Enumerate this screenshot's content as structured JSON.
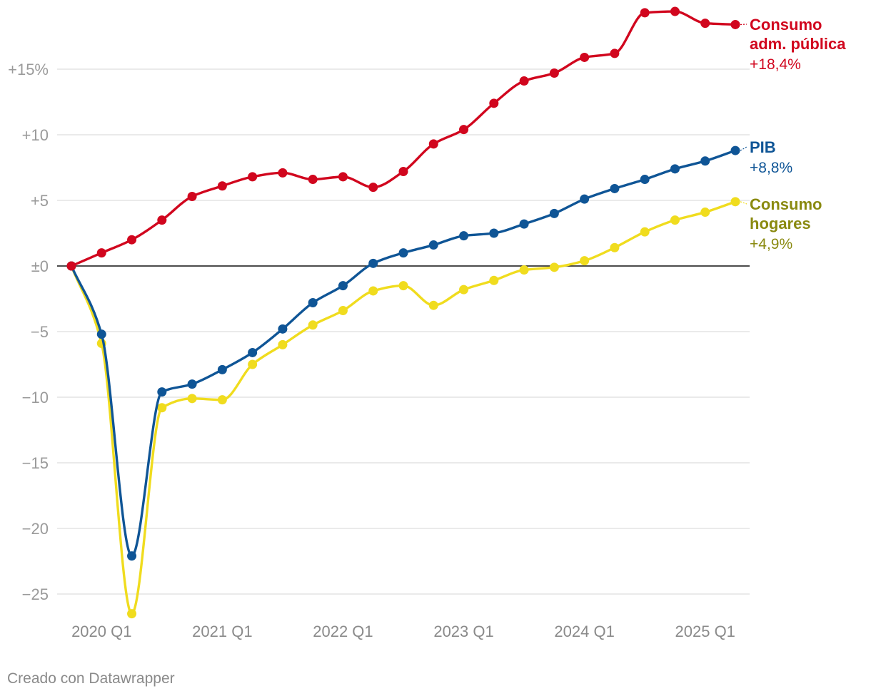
{
  "chart_data": {
    "type": "line",
    "x": [
      "2019 Q4",
      "2020 Q1",
      "2020 Q2",
      "2020 Q3",
      "2020 Q4",
      "2021 Q1",
      "2021 Q2",
      "2021 Q3",
      "2021 Q4",
      "2022 Q1",
      "2022 Q2",
      "2022 Q3",
      "2022 Q4",
      "2023 Q1",
      "2023 Q2",
      "2023 Q3",
      "2023 Q4",
      "2024 Q1",
      "2024 Q2",
      "2024 Q3",
      "2024 Q4",
      "2025 Q1",
      "2025 Q2"
    ],
    "x_tick_labels": [
      "2020 Q1",
      "2021 Q1",
      "2022 Q1",
      "2023 Q1",
      "2024 Q1",
      "2025 Q1"
    ],
    "y_tick_labels": [
      {
        "value": 15,
        "label": "+15%"
      },
      {
        "value": 10,
        "label": "+10"
      },
      {
        "value": 5,
        "label": "+5"
      },
      {
        "value": 0,
        "label": "±0"
      },
      {
        "value": -5,
        "label": "−5"
      },
      {
        "value": -10,
        "label": "−10"
      },
      {
        "value": -15,
        "label": "−15"
      },
      {
        "value": -20,
        "label": "−20"
      },
      {
        "value": -25,
        "label": "−25"
      }
    ],
    "ylim": [
      -27,
      19
    ],
    "grid": true,
    "title": "",
    "xlabel": "",
    "ylabel": "",
    "series": [
      {
        "name": "Consumo hogares",
        "label_lines": [
          "Consumo",
          "hogares"
        ],
        "end_label": "+4,9%",
        "color": "#f0dc1e",
        "label_color": "#8a8a10",
        "values": [
          0,
          -5.9,
          -26.5,
          -10.8,
          -10.1,
          -10.2,
          -7.5,
          -6.0,
          -4.5,
          -3.4,
          -1.9,
          -1.5,
          -3.0,
          -1.8,
          -1.1,
          -0.3,
          -0.1,
          0.4,
          1.4,
          2.6,
          3.5,
          4.1,
          4.9
        ]
      },
      {
        "name": "PIB",
        "label_lines": [
          "PIB"
        ],
        "end_label": "+8,8%",
        "color": "#0f5596",
        "label_color": "#0f5596",
        "values": [
          0,
          -5.2,
          -22.1,
          -9.6,
          -9.0,
          -7.9,
          -6.6,
          -4.8,
          -2.8,
          -1.5,
          0.2,
          1.0,
          1.6,
          2.3,
          2.5,
          3.2,
          4.0,
          5.1,
          5.9,
          6.6,
          7.4,
          8.0,
          8.8
        ]
      },
      {
        "name": "Consumo adm. pública",
        "label_lines": [
          "Consumo",
          "adm. pública"
        ],
        "end_label": "+18,4%",
        "color": "#d1061e",
        "label_color": "#d1061e",
        "values": [
          0,
          1.0,
          2.0,
          3.5,
          5.3,
          6.1,
          6.8,
          7.1,
          6.6,
          6.8,
          6.0,
          7.2,
          9.3,
          10.4,
          12.4,
          14.1,
          14.7,
          15.9,
          16.2,
          19.3,
          19.4,
          18.5,
          18.4
        ]
      }
    ]
  },
  "footer": {
    "credit": "Creado con Datawrapper"
  }
}
